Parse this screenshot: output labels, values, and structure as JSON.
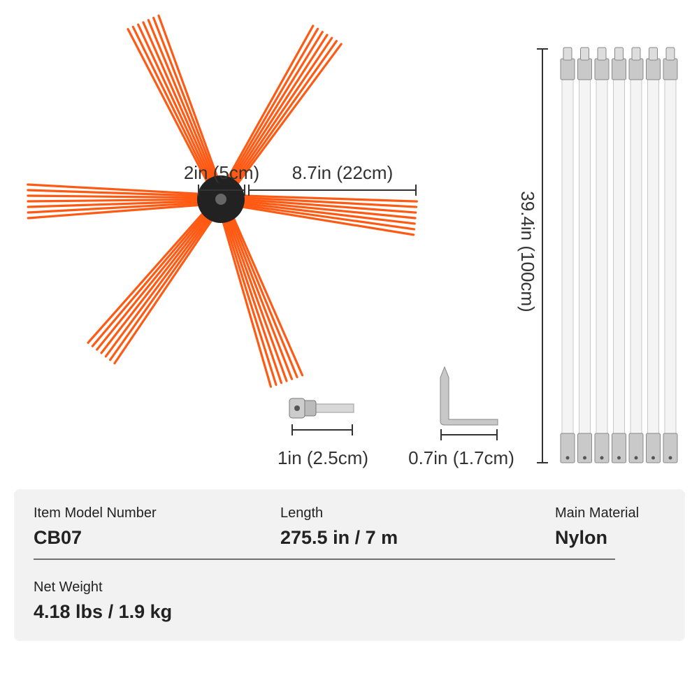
{
  "dimensions": {
    "brush_diameter": "2in (5cm)",
    "bristle_length": "8.7in (22cm)",
    "rod_length": "39.4in (100cm)",
    "adapter_length": "1in (2.5cm)",
    "wrench_length": "0.7in (1.7cm)"
  },
  "specs": {
    "rows": [
      [
        {
          "label": "Item Model Number",
          "value": "CB07"
        },
        {
          "label": "Length",
          "value": "275.5 in / 7 m"
        },
        {
          "label": "Main Material",
          "value": "Nylon"
        }
      ],
      [
        {
          "label": "Net Weight",
          "value": "4.18 lbs / 1.9 kg"
        }
      ]
    ]
  }
}
